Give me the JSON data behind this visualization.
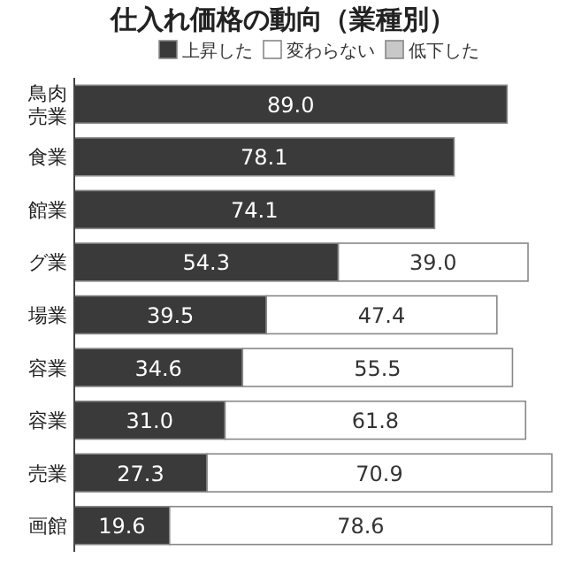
{
  "chart_data": {
    "type": "bar",
    "orientation": "horizontal",
    "stacked": true,
    "title": "仕入れ価格の動向（業種別）",
    "categories": [
      "鳥肉売業",
      "食業",
      "館業",
      "グ業",
      "場業",
      "容業",
      "容業",
      "売業",
      "画館"
    ],
    "series": [
      {
        "name": "上昇した",
        "color": "#3a3a3a",
        "values": [
          89.0,
          78.1,
          74.1,
          54.3,
          39.5,
          34.6,
          31.0,
          27.3,
          19.6
        ],
        "value_labels": [
          "89.0",
          "78.1",
          "74.1",
          "54.3",
          "39.5",
          "34.6",
          "31.0",
          "27.3",
          "19.6"
        ]
      },
      {
        "name": "変わらない",
        "color": "#ffffff",
        "values": [
          null,
          null,
          null,
          39.0,
          47.4,
          55.5,
          61.8,
          70.9,
          78.6
        ],
        "value_labels": [
          null,
          null,
          null,
          "39.0",
          "47.4",
          "55.5",
          "61.8",
          "70.9",
          "78.6"
        ]
      },
      {
        "name": "低下した",
        "color": "#c8c8c8",
        "values": [
          null,
          null,
          null,
          null,
          null,
          null,
          null,
          null,
          null
        ]
      }
    ],
    "legend": "top"
  }
}
